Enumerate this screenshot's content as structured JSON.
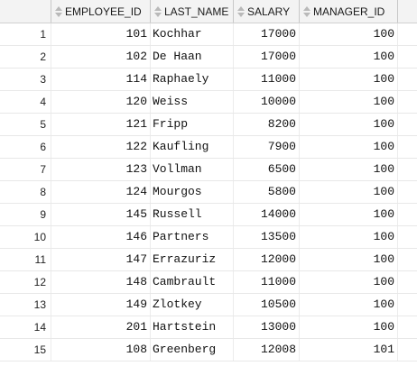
{
  "columns": [
    {
      "key": "employee_id",
      "label": "EMPLOYEE_ID",
      "align": "right"
    },
    {
      "key": "last_name",
      "label": "LAST_NAME",
      "align": "left"
    },
    {
      "key": "salary",
      "label": "SALARY",
      "align": "right"
    },
    {
      "key": "manager_id",
      "label": "MANAGER_ID",
      "align": "right"
    }
  ],
  "rows": [
    {
      "rownum": "1",
      "employee_id": "101",
      "last_name": "Kochhar",
      "salary": "17000",
      "manager_id": "100"
    },
    {
      "rownum": "2",
      "employee_id": "102",
      "last_name": "De Haan",
      "salary": "17000",
      "manager_id": "100"
    },
    {
      "rownum": "3",
      "employee_id": "114",
      "last_name": "Raphaely",
      "salary": "11000",
      "manager_id": "100"
    },
    {
      "rownum": "4",
      "employee_id": "120",
      "last_name": "Weiss",
      "salary": "10000",
      "manager_id": "100"
    },
    {
      "rownum": "5",
      "employee_id": "121",
      "last_name": "Fripp",
      "salary": "8200",
      "manager_id": "100"
    },
    {
      "rownum": "6",
      "employee_id": "122",
      "last_name": "Kaufling",
      "salary": "7900",
      "manager_id": "100"
    },
    {
      "rownum": "7",
      "employee_id": "123",
      "last_name": "Vollman",
      "salary": "6500",
      "manager_id": "100"
    },
    {
      "rownum": "8",
      "employee_id": "124",
      "last_name": "Mourgos",
      "salary": "5800",
      "manager_id": "100"
    },
    {
      "rownum": "9",
      "employee_id": "145",
      "last_name": "Russell",
      "salary": "14000",
      "manager_id": "100"
    },
    {
      "rownum": "10",
      "employee_id": "146",
      "last_name": "Partners",
      "salary": "13500",
      "manager_id": "100"
    },
    {
      "rownum": "11",
      "employee_id": "147",
      "last_name": "Errazuriz",
      "salary": "12000",
      "manager_id": "100"
    },
    {
      "rownum": "12",
      "employee_id": "148",
      "last_name": "Cambrault",
      "salary": "11000",
      "manager_id": "100"
    },
    {
      "rownum": "13",
      "employee_id": "149",
      "last_name": "Zlotkey",
      "salary": "10500",
      "manager_id": "100"
    },
    {
      "rownum": "14",
      "employee_id": "201",
      "last_name": "Hartstein",
      "salary": "13000",
      "manager_id": "100"
    },
    {
      "rownum": "15",
      "employee_id": "108",
      "last_name": "Greenberg",
      "salary": "12008",
      "manager_id": "101"
    }
  ]
}
